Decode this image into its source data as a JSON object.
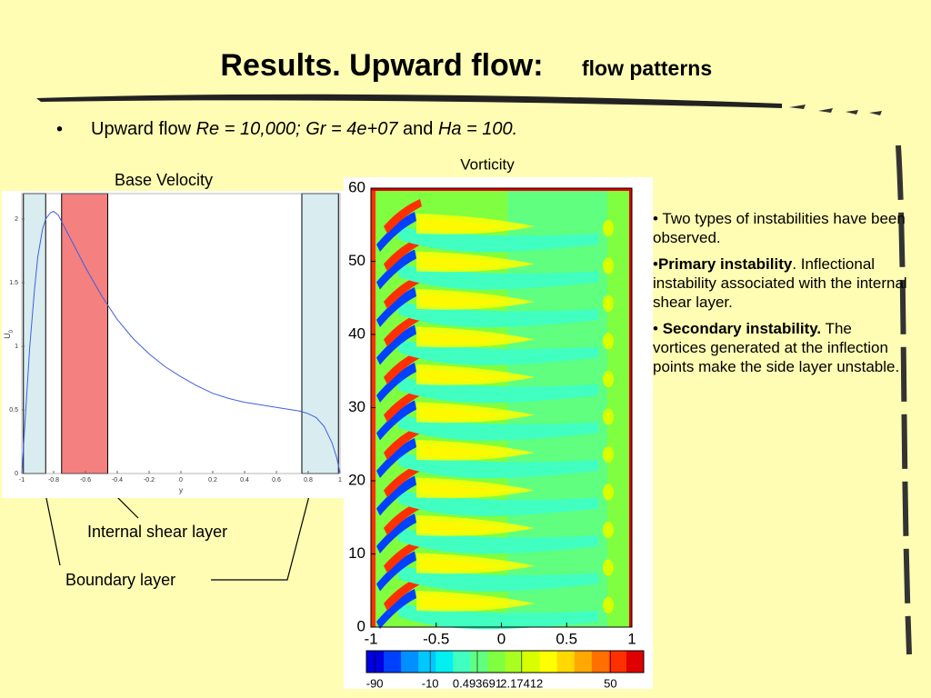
{
  "slide": {
    "title": "Results. Upward flow:",
    "title_small": "flow patterns",
    "bullet_marker": "•",
    "bullet": {
      "prefix": "Upward flow",
      "params": "Re = 10,000; Gr = 4e+07",
      "joiner": "and",
      "ha": "Ha = 100."
    },
    "notes": [
      {
        "marker": "•",
        "text": "Two types of instabilities have been observed."
      },
      {
        "marker": "•",
        "bold": "Primary instability",
        "text": ". Inflectional instability associated with the internal shear layer."
      },
      {
        "marker": "•",
        "bold": "Secondary instability.",
        "text": "The vortices generated at the inflection points make the side layer unstable."
      }
    ],
    "annotations": {
      "shear": "Internal shear layer",
      "boundary": "Boundary layer"
    }
  },
  "chart_data": [
    {
      "type": "line",
      "title": "Base Velocity",
      "xlabel": "y",
      "ylabel": "U",
      "ylabel_subscript": "0",
      "color": "#3f5fe0",
      "x": [
        -1,
        -0.97,
        -0.95,
        -0.92,
        -0.9,
        -0.87,
        -0.85,
        -0.82,
        -0.8,
        -0.77,
        -0.75,
        -0.7,
        -0.65,
        -0.6,
        -0.5,
        -0.4,
        -0.3,
        -0.2,
        -0.1,
        0,
        0.1,
        0.2,
        0.3,
        0.4,
        0.5,
        0.6,
        0.7,
        0.75,
        0.8,
        0.85,
        0.9,
        0.95,
        0.98,
        1
      ],
      "values": [
        0,
        0.6,
        1.0,
        1.45,
        1.7,
        1.92,
        2.0,
        2.05,
        2.06,
        2.03,
        1.98,
        1.86,
        1.74,
        1.62,
        1.4,
        1.21,
        1.06,
        0.94,
        0.84,
        0.76,
        0.69,
        0.63,
        0.59,
        0.56,
        0.54,
        0.52,
        0.5,
        0.49,
        0.47,
        0.44,
        0.37,
        0.24,
        0.12,
        0
      ],
      "xlim": [
        -1,
        1
      ],
      "xticks": [
        -1,
        -0.8,
        -0.6,
        -0.4,
        -0.2,
        0,
        0.2,
        0.4,
        0.6,
        0.8,
        1
      ],
      "ylim": [
        0,
        2.2
      ],
      "yticks": [
        0,
        0.5,
        1,
        1.5,
        2
      ],
      "regions": [
        {
          "x": [
            -0.99,
            -0.85
          ],
          "color": "#d9ecf0"
        },
        {
          "x": [
            -0.75,
            -0.46
          ],
          "color": "#f48080"
        },
        {
          "x": [
            0.76,
            0.99
          ],
          "color": "#d9ecf0"
        }
      ]
    },
    {
      "type": "contour",
      "title": "Vorticity",
      "xlim": [
        -1,
        1
      ],
      "xticks": [
        -1,
        -0.5,
        0,
        0.5,
        1
      ],
      "ylim": [
        0,
        60
      ],
      "yticks": [
        0,
        10,
        20,
        30,
        40,
        50,
        60
      ],
      "colorbar_ticks": [
        -90,
        -10,
        0.493691,
        2.17412,
        50
      ],
      "colormap": [
        "#0000e0",
        "#0040ff",
        "#0090ff",
        "#00c8ff",
        "#00f0f0",
        "#40ffc0",
        "#60ff80",
        "#80ff40",
        "#a8ff20",
        "#d8ff00",
        "#ffff00",
        "#ffd800",
        "#ffa800",
        "#ff7000",
        "#ff3000",
        "#e00000"
      ]
    }
  ]
}
